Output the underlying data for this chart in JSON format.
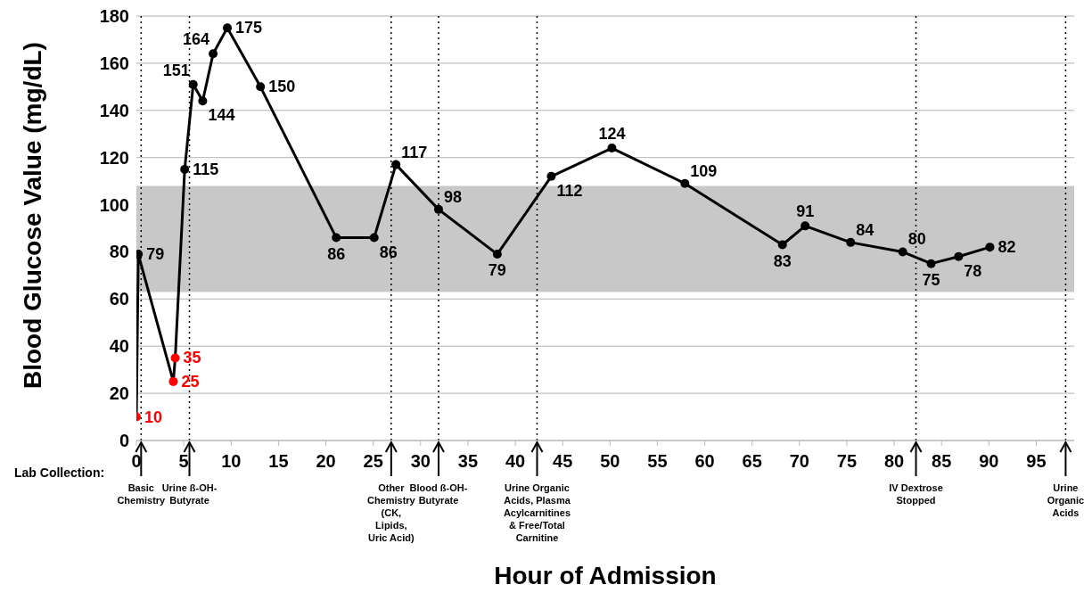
{
  "chart_data": {
    "type": "line",
    "xlabel": "Hour of Admission",
    "ylabel": "Blood Glucose Value (mg/dL)",
    "annotations": [
      "Lab Collection:"
    ],
    "x": [
      0,
      0.2,
      3.9,
      4.1,
      5.1,
      6.0,
      7.0,
      8.1,
      9.6,
      13.1,
      21.1,
      25.1,
      27.4,
      31.9,
      38.1,
      43.8,
      50.2,
      57.9,
      68.2,
      70.6,
      75.4,
      80.9,
      83.9,
      86.8,
      90.1
    ],
    "series": [
      {
        "color": "#000000",
        "values": [
          10,
          79,
          25,
          35,
          115,
          151,
          144,
          164,
          175,
          150,
          86,
          86,
          117,
          98,
          79,
          112,
          124,
          109,
          83,
          91,
          84,
          80,
          75,
          78,
          82
        ],
        "colors": [
          "#ff0000",
          "#000000",
          "#ff0000",
          "#ff0000",
          "#000000",
          "#000000",
          "#000000",
          "#000000",
          "#000000",
          "#000000",
          "#000000",
          "#000000",
          "#000000",
          "#000000",
          "#000000",
          "#000000",
          "#000000",
          "#000000",
          "#000000",
          "#000000",
          "#000000",
          "#000000",
          "#000000",
          "#000000",
          "#000000"
        ]
      }
    ],
    "data_labels": true,
    "marker": "circle",
    "line_style": "solid",
    "grid": "y",
    "xlim": [
      0,
      99
    ],
    "xticks": [
      0,
      5,
      10,
      15,
      20,
      25,
      30,
      35,
      40,
      45,
      50,
      55,
      60,
      65,
      70,
      75,
      80,
      85,
      90,
      95
    ],
    "ylim": [
      0,
      180
    ],
    "yticks": [
      0,
      20,
      40,
      60,
      80,
      100,
      120,
      140,
      160,
      180
    ],
    "bands": [
      {
        "axis": "y",
        "from": 63,
        "to": 108,
        "color": "#c8c8c8"
      }
    ],
    "ref_lines": [
      {
        "axis": "x",
        "value": 0.5,
        "label": "Basic\nChemistry",
        "line_style": "dotted",
        "color": "#000000"
      },
      {
        "axis": "x",
        "value": 5.6,
        "label": "Urine ß-OH-\nButyrate",
        "line_style": "dotted",
        "color": "#000000"
      },
      {
        "axis": "x",
        "value": 26.9,
        "label": "Other\nChemistry\n(CK,\nLipids,\nUric Acid)",
        "line_style": "dotted",
        "color": "#000000"
      },
      {
        "axis": "x",
        "value": 31.9,
        "label": "Blood ß-OH-\nButyrate",
        "line_style": "dotted",
        "color": "#000000"
      },
      {
        "axis": "x",
        "value": 42.3,
        "label": "Urine Organic\nAcids, Plasma\nAcylcarnitines\n& Free/Total\nCarnitine",
        "line_style": "dotted",
        "color": "#000000"
      },
      {
        "axis": "x",
        "value": 82.3,
        "label": "IV Dextrose\nStopped",
        "line_style": "dotted",
        "color": "#000000"
      },
      {
        "axis": "x",
        "value": 98.1,
        "label": "Urine\nOrganic\nAcids",
        "line_style": "dotted",
        "color": "#000000"
      }
    ]
  }
}
